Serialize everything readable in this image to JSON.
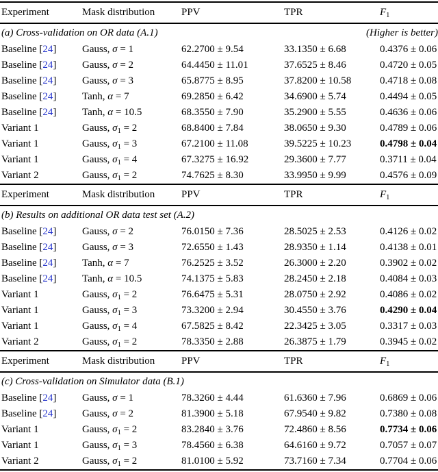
{
  "citation_color": "#2433cc",
  "citation": {
    "open": " [",
    "close": "]"
  },
  "columns": {
    "experiment": "Experiment",
    "mask": "Mask distribution",
    "ppv": "PPV",
    "tpr": "TPR",
    "f1": {
      "base": "F",
      "sub": "1"
    }
  },
  "sections": [
    {
      "title": "(a) Cross-validation on OR data (A.1)",
      "note": "(Higher is better)",
      "rows": [
        {
          "experiment": "Baseline",
          "cite": "24",
          "mask": {
            "family": "Gauss, ",
            "var": "σ",
            "sub": "",
            "eq": " = ",
            "val": "1"
          },
          "ppv": "62.2700 ± 9.54",
          "tpr": "33.1350 ± 6.68",
          "f1": "0.4376 ± 0.06",
          "f1_bold": false
        },
        {
          "experiment": "Baseline",
          "cite": "24",
          "mask": {
            "family": "Gauss, ",
            "var": "σ",
            "sub": "",
            "eq": " = ",
            "val": "2"
          },
          "ppv": "64.4450 ± 11.01",
          "tpr": "37.6525 ± 8.46",
          "f1": "0.4720 ± 0.05",
          "f1_bold": false
        },
        {
          "experiment": "Baseline",
          "cite": "24",
          "mask": {
            "family": "Gauss, ",
            "var": "σ",
            "sub": "",
            "eq": " = ",
            "val": "3"
          },
          "ppv": "65.8775 ± 8.95",
          "tpr": "37.8200 ± 10.58",
          "f1": "0.4718 ± 0.08",
          "f1_bold": false
        },
        {
          "experiment": "Baseline",
          "cite": "24",
          "mask": {
            "family": "Tanh, ",
            "var": "α",
            "sub": "",
            "eq": " = ",
            "val": "7"
          },
          "ppv": "69.2850 ± 6.42",
          "tpr": "34.6900 ± 5.74",
          "f1": "0.4494 ± 0.05",
          "f1_bold": false
        },
        {
          "experiment": "Baseline",
          "cite": "24",
          "mask": {
            "family": "Tanh, ",
            "var": "α",
            "sub": "",
            "eq": " = ",
            "val": "10.5"
          },
          "ppv": "68.3550 ± 7.90",
          "tpr": "35.2900 ± 5.55",
          "f1": "0.4636 ± 0.06",
          "f1_bold": false
        },
        {
          "experiment": "Variant 1",
          "cite": null,
          "mask": {
            "family": "Gauss, ",
            "var": "σ",
            "sub": "1",
            "eq": " = ",
            "val": "2"
          },
          "ppv": "68.8400 ± 7.84",
          "tpr": "38.0650 ± 9.30",
          "f1": "0.4789 ± 0.06",
          "f1_bold": false
        },
        {
          "experiment": "Variant 1",
          "cite": null,
          "mask": {
            "family": "Gauss, ",
            "var": "σ",
            "sub": "1",
            "eq": " = ",
            "val": "3"
          },
          "ppv": "67.2100 ± 11.08",
          "tpr": "39.5225 ± 10.23",
          "f1": "0.4798 ± 0.04",
          "f1_bold": true
        },
        {
          "experiment": "Variant 1",
          "cite": null,
          "mask": {
            "family": "Gauss, ",
            "var": "σ",
            "sub": "1",
            "eq": " = ",
            "val": "4"
          },
          "ppv": "67.3275 ± 16.92",
          "tpr": "29.3600 ± 7.77",
          "f1": "0.3711 ± 0.04",
          "f1_bold": false
        },
        {
          "experiment": "Variant 2",
          "cite": null,
          "mask": {
            "family": "Gauss, ",
            "var": "σ",
            "sub": "1",
            "eq": " = ",
            "val": "2"
          },
          "ppv": "74.7625 ± 8.30",
          "tpr": "33.9950 ± 9.99",
          "f1": "0.4576 ± 0.09",
          "f1_bold": false
        }
      ]
    },
    {
      "title": "(b) Results on additional OR data test set (A.2)",
      "note": "",
      "rows": [
        {
          "experiment": "Baseline",
          "cite": "24",
          "mask": {
            "family": "Gauss, ",
            "var": "σ",
            "sub": "",
            "eq": " = ",
            "val": "2"
          },
          "ppv": "76.0150 ± 7.36",
          "tpr": "28.5025 ± 2.53",
          "f1": "0.4126 ± 0.02",
          "f1_bold": false
        },
        {
          "experiment": "Baseline",
          "cite": "24",
          "mask": {
            "family": "Gauss, ",
            "var": "σ",
            "sub": "",
            "eq": " = ",
            "val": "3"
          },
          "ppv": "72.6550 ± 1.43",
          "tpr": "28.9350 ± 1.14",
          "f1": "0.4138 ± 0.01",
          "f1_bold": false
        },
        {
          "experiment": "Baseline",
          "cite": "24",
          "mask": {
            "family": "Tanh, ",
            "var": "α",
            "sub": "",
            "eq": " = ",
            "val": "7"
          },
          "ppv": "76.2525 ± 3.52",
          "tpr": "26.3000 ± 2.20",
          "f1": "0.3902 ± 0.02",
          "f1_bold": false
        },
        {
          "experiment": "Baseline",
          "cite": "24",
          "mask": {
            "family": "Tanh, ",
            "var": "α",
            "sub": "",
            "eq": " = ",
            "val": "10.5"
          },
          "ppv": "74.1375 ± 5.83",
          "tpr": "28.2450 ± 2.18",
          "f1": "0.4084 ± 0.03",
          "f1_bold": false
        },
        {
          "experiment": "Variant 1",
          "cite": null,
          "mask": {
            "family": "Gauss, ",
            "var": "σ",
            "sub": "1",
            "eq": " = ",
            "val": "2"
          },
          "ppv": "76.6475 ± 5.31",
          "tpr": "28.0750 ± 2.92",
          "f1": "0.4086 ± 0.02",
          "f1_bold": false
        },
        {
          "experiment": "Variant 1",
          "cite": null,
          "mask": {
            "family": "Gauss, ",
            "var": "σ",
            "sub": "1",
            "eq": " = ",
            "val": "3"
          },
          "ppv": "73.3200 ± 2.94",
          "tpr": "30.4550 ± 3.76",
          "f1": "0.4290 ± 0.04",
          "f1_bold": true
        },
        {
          "experiment": "Variant 1",
          "cite": null,
          "mask": {
            "family": "Gauss, ",
            "var": "σ",
            "sub": "1",
            "eq": " = ",
            "val": "4"
          },
          "ppv": "67.5825 ± 8.42",
          "tpr": "22.3425 ± 3.05",
          "f1": "0.3317 ± 0.03",
          "f1_bold": false
        },
        {
          "experiment": "Variant 2",
          "cite": null,
          "mask": {
            "family": "Gauss, ",
            "var": "σ",
            "sub": "1",
            "eq": " = ",
            "val": "2"
          },
          "ppv": "78.3350 ± 2.88",
          "tpr": "26.3875 ± 1.79",
          "f1": "0.3945 ± 0.02",
          "f1_bold": false
        }
      ]
    },
    {
      "title": "(c) Cross-validation on Simulator data (B.1)",
      "note": "",
      "rows": [
        {
          "experiment": "Baseline",
          "cite": "24",
          "mask": {
            "family": "Gauss, ",
            "var": "σ",
            "sub": "",
            "eq": " = ",
            "val": "1"
          },
          "ppv": "78.3260 ± 4.44",
          "tpr": "61.6360 ± 7.96",
          "f1": "0.6869 ± 0.06",
          "f1_bold": false
        },
        {
          "experiment": "Baseline",
          "cite": "24",
          "mask": {
            "family": "Gauss, ",
            "var": "σ",
            "sub": "",
            "eq": " = ",
            "val": "2"
          },
          "ppv": "81.3900 ± 5.18",
          "tpr": "67.9540 ± 9.82",
          "f1": "0.7380 ± 0.08",
          "f1_bold": false
        },
        {
          "experiment": "Variant 1",
          "cite": null,
          "mask": {
            "family": "Gauss, ",
            "var": "σ",
            "sub": "1",
            "eq": " = ",
            "val": "2"
          },
          "ppv": "83.2840 ± 3.76",
          "tpr": "72.4860 ± 8.56",
          "f1": "0.7734 ± 0.06",
          "f1_bold": true
        },
        {
          "experiment": "Variant 1",
          "cite": null,
          "mask": {
            "family": "Gauss, ",
            "var": "σ",
            "sub": "1",
            "eq": " = ",
            "val": "3"
          },
          "ppv": "78.4560 ± 6.38",
          "tpr": "64.6160 ± 9.72",
          "f1": "0.7057 ± 0.07",
          "f1_bold": false
        },
        {
          "experiment": "Variant 2",
          "cite": null,
          "mask": {
            "family": "Gauss, ",
            "var": "σ",
            "sub": "1",
            "eq": " = ",
            "val": "2"
          },
          "ppv": "81.0100 ± 5.92",
          "tpr": "73.7160 ± 7.34",
          "f1": "0.7704 ± 0.06",
          "f1_bold": false
        }
      ]
    }
  ]
}
